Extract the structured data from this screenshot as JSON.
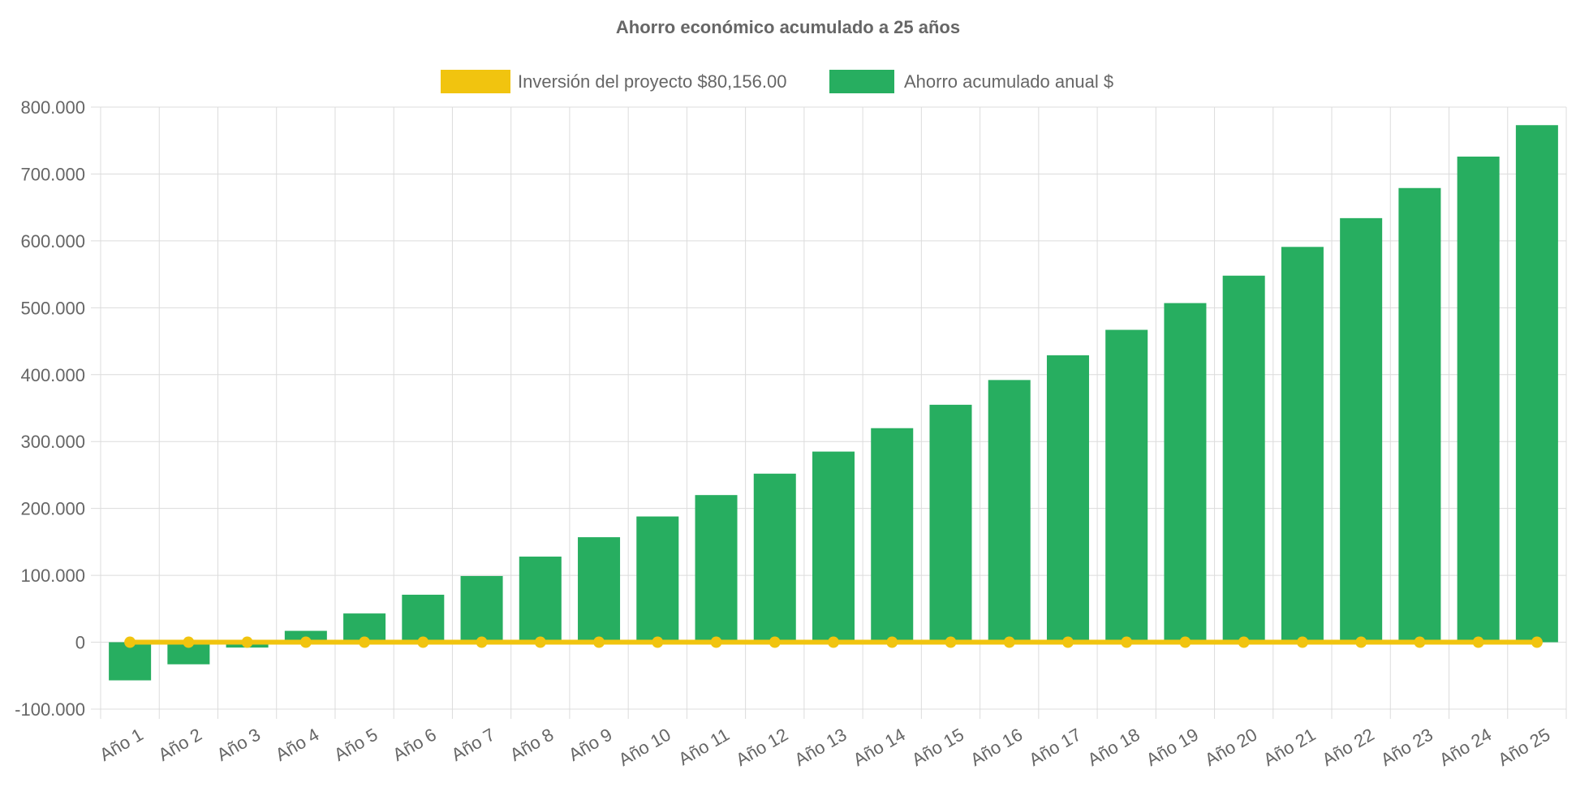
{
  "chart_data": {
    "type": "bar",
    "title": "Ahorro económico acumulado a 25 años",
    "categories": [
      "Año 1",
      "Año 2",
      "Año 3",
      "Año 4",
      "Año 5",
      "Año 6",
      "Año 7",
      "Año 8",
      "Año 9",
      "Año 10",
      "Año 11",
      "Año 12",
      "Año 13",
      "Año 14",
      "Año 15",
      "Año 16",
      "Año 17",
      "Año 18",
      "Año 19",
      "Año 20",
      "Año 21",
      "Año 22",
      "Año 23",
      "Año 24",
      "Año 25"
    ],
    "series": [
      {
        "name": "Inversión del proyecto $80,156.00",
        "type": "line",
        "color": "#f1c40f",
        "values": [
          0,
          0,
          0,
          0,
          0,
          0,
          0,
          0,
          0,
          0,
          0,
          0,
          0,
          0,
          0,
          0,
          0,
          0,
          0,
          0,
          0,
          0,
          0,
          0,
          0
        ]
      },
      {
        "name": "Ahorro acumulado anual $",
        "type": "bar",
        "color": "#27ae60",
        "values": [
          -57000,
          -33000,
          -8000,
          17000,
          43000,
          71000,
          99000,
          128000,
          157000,
          188000,
          220000,
          252000,
          285000,
          320000,
          355000,
          392000,
          429000,
          467000,
          507000,
          548000,
          591000,
          634000,
          679000,
          726000,
          773000
        ]
      }
    ],
    "yticks": [
      "800.000",
      "700.000",
      "600.000",
      "500.000",
      "400.000",
      "300.000",
      "200.000",
      "100.000",
      "0",
      "-100.000"
    ],
    "ylim": [
      -100000,
      800000
    ],
    "grid": true,
    "legend_position": "top"
  }
}
